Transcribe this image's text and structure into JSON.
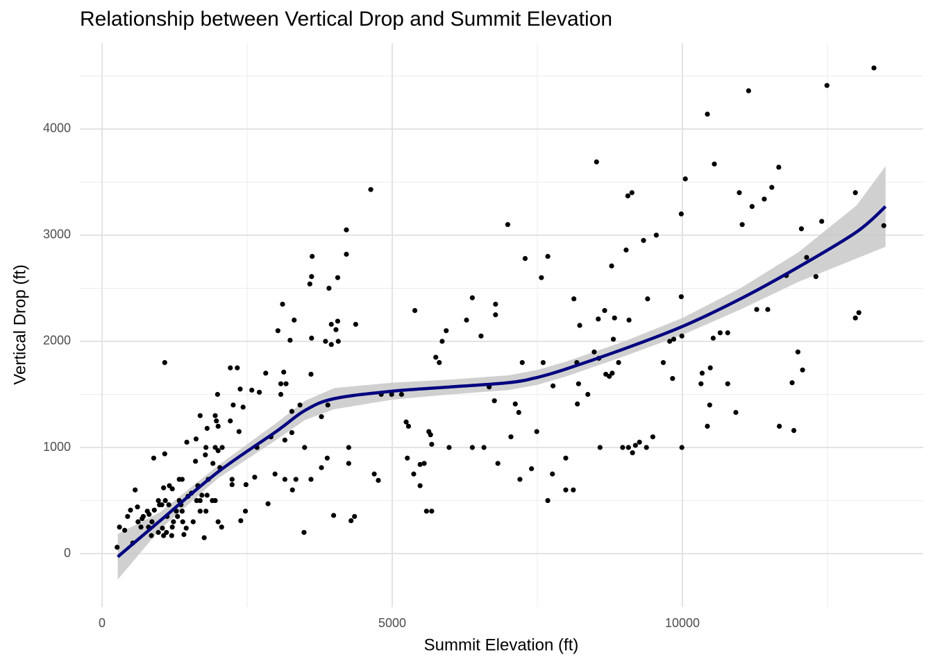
{
  "chart_data": {
    "type": "scatter",
    "title": "Relationship between Vertical Drop and Summit Elevation",
    "x_label": "Summit Elevation (ft)",
    "y_label": "Vertical Drop (ft)",
    "xlim": [
      -383,
      14150
    ],
    "ylim": [
      -503,
      4810
    ],
    "xticks": [
      0,
      5000,
      10000
    ],
    "yticks": [
      0,
      1000,
      2000,
      3000,
      4000
    ],
    "x_minor_grid": [
      2500,
      7500,
      12500
    ],
    "y_minor_grid": [
      500,
      1500,
      2500,
      3500,
      4500
    ],
    "grid": true,
    "color": "#000000",
    "x": [
      13300,
      12490,
      11140,
      10430,
      8520,
      10550,
      11660,
      10050,
      11540,
      10980,
      11410,
      11200,
      12980,
      9130,
      9060,
      9980,
      11030,
      12400,
      13470,
      12050,
      6990,
      9550,
      9330,
      9030,
      7290,
      7680,
      12140,
      8780,
      7570,
      11790,
      12300,
      9980,
      9400,
      6380,
      8130,
      6780,
      11280,
      11470,
      13040,
      12980,
      8660,
      6780,
      5390,
      8550,
      8830,
      9080,
      6280,
      8230,
      5930,
      6530,
      10530,
      10650,
      10780,
      9990,
      9850,
      9780,
      8810,
      5860,
      5810,
      5750,
      9670,
      7240,
      7600,
      8180,
      8480,
      8560,
      8900,
      11990,
      10340,
      10480,
      12070,
      8680,
      8790,
      8740,
      9830,
      11890,
      10780,
      10320,
      8210,
      6670,
      7770,
      5160,
      4990,
      4810,
      8370,
      6760,
      7120,
      10470,
      8190,
      7180,
      10920,
      5240,
      5280,
      10430,
      11670,
      11920,
      7490,
      5630,
      5660,
      7045,
      9490,
      9260,
      9190,
      9140,
      9070,
      9380,
      9990,
      8970,
      5680,
      5980,
      6380,
      6580,
      8580,
      5260,
      7990,
      5550,
      5480,
      6820,
      7400,
      5370,
      7760,
      7200,
      5480,
      7990,
      8120,
      7680,
      5590,
      5680,
      4690,
      4760,
      4630,
      4210,
      4210,
      3620,
      4060,
      3610,
      3580,
      3910,
      3110,
      4060,
      4370,
      3310,
      3950,
      4030,
      3610,
      4070,
      3850,
      3950,
      3030,
      3240,
      3600,
      2820,
      3130,
      3080,
      3170,
      2380,
      2580,
      2710,
      3080,
      2330,
      3410,
      3890,
      2260,
      2430,
      3270,
      3780,
      3270,
      2910,
      3150,
      2670,
      3490,
      4250,
      3880,
      4250,
      3780,
      3150,
      2980,
      3340,
      3600,
      2630,
      2480,
      3280,
      2860,
      2390,
      2470,
      3990,
      4350,
      4290,
      3480,
      1080,
      2210,
      1990,
      1950,
      1690,
      1970,
      2210,
      1810,
      2000,
      2360,
      1460,
      1620,
      1790,
      1950,
      2070,
      2000,
      890,
      1080,
      1780,
      1610,
      1910,
      2030,
      1830,
      2240,
      2240,
      1330,
      1380,
      1160,
      1210,
      1060,
      570,
      1540,
      1810,
      1720,
      1900,
      1630,
      1690,
      1950,
      1330,
      970,
      1090,
      1150,
      1030,
      780,
      1690,
      1790,
      1280,
      1380,
      710,
      1120,
      1570,
      1230,
      1390,
      620,
      440,
      860,
      2000,
      670,
      800,
      1040,
      1450,
      2060,
      300,
      390,
      970,
      1110,
      1200,
      1760,
      850,
      1060,
      530,
      260,
      490,
      690,
      900,
      990,
      610,
      810,
      1360,
      1210,
      1300,
      1410,
      1480,
      1650
    ],
    "values": [
      4575,
      4410,
      4360,
      4140,
      3690,
      3670,
      3640,
      3530,
      3450,
      3400,
      3340,
      3270,
      3400,
      3400,
      3370,
      3200,
      3100,
      3130,
      3090,
      3060,
      3100,
      3000,
      2950,
      2860,
      2780,
      2800,
      2790,
      2710,
      2600,
      2620,
      2610,
      2420,
      2400,
      2410,
      2400,
      2350,
      2300,
      2300,
      2270,
      2220,
      2290,
      2250,
      2290,
      2210,
      2220,
      2200,
      2200,
      2150,
      2100,
      2050,
      2030,
      2080,
      2080,
      2050,
      2020,
      2000,
      2020,
      2000,
      1800,
      1850,
      1800,
      1800,
      1800,
      1800,
      1900,
      1840,
      1800,
      1900,
      1700,
      1750,
      1730,
      1690,
      1700,
      1670,
      1650,
      1610,
      1600,
      1600,
      1600,
      1570,
      1580,
      1500,
      1500,
      1500,
      1500,
      1440,
      1410,
      1400,
      1410,
      1330,
      1330,
      1240,
      1200,
      1200,
      1200,
      1160,
      1150,
      1150,
      1120,
      1100,
      1100,
      1050,
      1020,
      950,
      1000,
      1000,
      1000,
      1000,
      1030,
      1000,
      1000,
      1000,
      1000,
      900,
      900,
      850,
      840,
      850,
      800,
      750,
      750,
      700,
      640,
      600,
      600,
      500,
      400,
      400,
      750,
      690,
      3430,
      3050,
      2820,
      2800,
      2600,
      2610,
      2540,
      2500,
      2350,
      2190,
      2160,
      2200,
      2160,
      2110,
      2030,
      2000,
      2000,
      1970,
      2100,
      2010,
      1690,
      1700,
      1710,
      1600,
      1600,
      1550,
      1540,
      1520,
      1500,
      1750,
      1400,
      1400,
      1400,
      1380,
      1340,
      1290,
      1140,
      1100,
      1070,
      1000,
      1000,
      1000,
      900,
      850,
      810,
      700,
      750,
      700,
      700,
      720,
      650,
      600,
      470,
      310,
      400,
      360,
      350,
      310,
      200,
      1800,
      1750,
      1500,
      1300,
      1300,
      1250,
      1250,
      1180,
      1200,
      1150,
      1050,
      1080,
      1000,
      1000,
      1000,
      970,
      900,
      940,
      930,
      870,
      850,
      810,
      700,
      700,
      650,
      700,
      700,
      640,
      610,
      620,
      600,
      570,
      550,
      550,
      500,
      500,
      500,
      500,
      500,
      500,
      500,
      460,
      460,
      400,
      400,
      400,
      400,
      400,
      350,
      350,
      300,
      300,
      300,
      300,
      350,
      300,
      300,
      250,
      250,
      240,
      240,
      250,
      250,
      220,
      200,
      200,
      170,
      150,
      170,
      170,
      100,
      60,
      410,
      330,
      410,
      460,
      440,
      370,
      460,
      250,
      350,
      180,
      540,
      640
    ],
    "smooth": {
      "color": "#000080",
      "band_color": "#c8c8c8",
      "x": [
        270,
        1000,
        2000,
        3000,
        3500,
        4000,
        5000,
        6000,
        7000,
        7500,
        8000,
        9000,
        10000,
        11000,
        12000,
        13000,
        13500
      ],
      "y": [
        -30,
        310,
        770,
        1150,
        1350,
        1460,
        1530,
        1570,
        1610,
        1660,
        1740,
        1930,
        2140,
        2400,
        2700,
        3030,
        3270
      ],
      "lower": [
        -245,
        230,
        710,
        1070,
        1260,
        1360,
        1450,
        1500,
        1540,
        1590,
        1670,
        1860,
        2060,
        2300,
        2560,
        2780,
        2890
      ],
      "upper": [
        185,
        390,
        830,
        1230,
        1440,
        1560,
        1610,
        1640,
        1680,
        1730,
        1810,
        2000,
        2220,
        2500,
        2840,
        3280,
        3650
      ]
    }
  }
}
